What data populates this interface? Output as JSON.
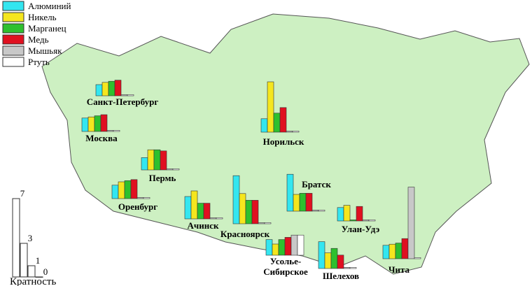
{
  "legend": [
    {
      "name": "Алюминий",
      "color": "#33e6f0"
    },
    {
      "name": "Никель",
      "color": "#f5e61e"
    },
    {
      "name": "Марганец",
      "color": "#2ec02e"
    },
    {
      "name": "Медь",
      "color": "#e01020"
    },
    {
      "name": "Мышьяк",
      "color": "#c8c8c8"
    },
    {
      "name": "Ртуть",
      "color": "#ffffff"
    }
  ],
  "cities": [
    {
      "name": [
        "Санкт-Петербург"
      ],
      "values": [
        1.0,
        1.2,
        1.3,
        1.4,
        0.1,
        0.1
      ]
    },
    {
      "name": [
        "Москва"
      ],
      "values": [
        1.2,
        1.3,
        1.4,
        1.5,
        0.1,
        0.1
      ]
    },
    {
      "name": [
        "Норильск"
      ],
      "values": [
        1.2,
        4.5,
        1.7,
        2.2,
        0.1,
        0.1
      ]
    },
    {
      "name": [
        "Пермь"
      ],
      "values": [
        1.1,
        1.8,
        1.8,
        1.7,
        0.1,
        0.1
      ]
    },
    {
      "name": [
        "Оренбург"
      ],
      "values": [
        1.2,
        1.5,
        1.6,
        1.7,
        0.1,
        0.1
      ]
    },
    {
      "name": [
        "Ачинск"
      ],
      "values": [
        2.0,
        2.5,
        1.4,
        1.4,
        0.1,
        0.1
      ]
    },
    {
      "name": [
        "Красноярск"
      ],
      "values": [
        4.3,
        2.7,
        2.1,
        2.1,
        0.1,
        0.1
      ]
    },
    {
      "name": [
        "Братск"
      ],
      "values": [
        3.3,
        1.5,
        1.6,
        1.6,
        0.1,
        0.1
      ]
    },
    {
      "name": [
        "Улан-Удэ"
      ],
      "values": [
        1.2,
        1.4,
        0.1,
        1.3,
        0.1,
        0.1
      ]
    },
    {
      "name": [
        "Усолье-",
        "Сибирское"
      ],
      "values": [
        1.4,
        1.0,
        1.4,
        1.6,
        1.8,
        1.8
      ]
    },
    {
      "name": [
        "Шелехов"
      ],
      "values": [
        2.4,
        1.4,
        1.8,
        1.2,
        0.1,
        0.1
      ]
    },
    {
      "name": [
        "Чита"
      ],
      "values": [
        1.2,
        1.3,
        1.4,
        1.8,
        6.4,
        0.1
      ]
    }
  ],
  "scale": {
    "values": [
      7,
      3,
      1,
      0
    ],
    "label": "Кратность"
  }
}
